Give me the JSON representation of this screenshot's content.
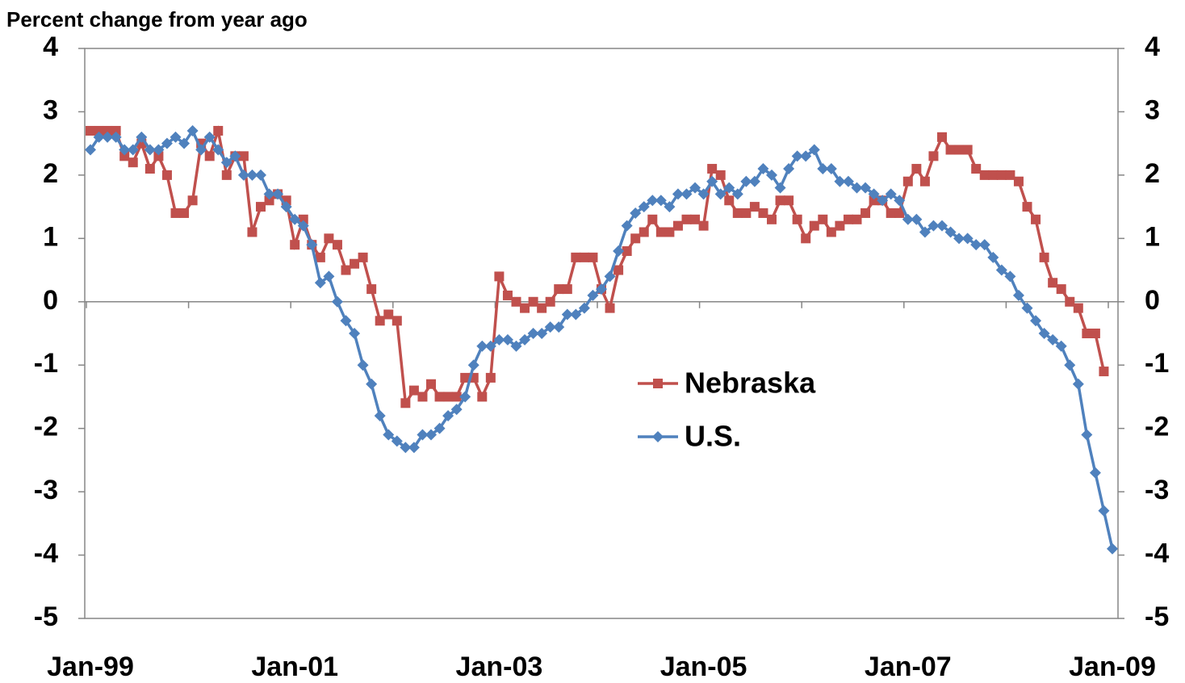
{
  "chart_data": {
    "type": "line",
    "title": "Percent change from year ago",
    "categories": [
      "Jan-99",
      null,
      null,
      null,
      null,
      null,
      null,
      null,
      null,
      null,
      null,
      null,
      null,
      null,
      null,
      null,
      null,
      null,
      null,
      null,
      null,
      null,
      null,
      null,
      "Jan-01",
      null,
      null,
      null,
      null,
      null,
      null,
      null,
      null,
      null,
      null,
      null,
      null,
      null,
      null,
      null,
      null,
      null,
      null,
      null,
      null,
      null,
      null,
      null,
      "Jan-03",
      null,
      null,
      null,
      null,
      null,
      null,
      null,
      null,
      null,
      null,
      null,
      null,
      null,
      null,
      null,
      null,
      null,
      null,
      null,
      null,
      null,
      null,
      null,
      "Jan-05",
      null,
      null,
      null,
      null,
      null,
      null,
      null,
      null,
      null,
      null,
      null,
      null,
      null,
      null,
      null,
      null,
      null,
      null,
      null,
      null,
      null,
      null,
      null,
      "Jan-07",
      null,
      null,
      null,
      null,
      null,
      null,
      null,
      null,
      null,
      null,
      null,
      null,
      null,
      null,
      null,
      null,
      null,
      null,
      null,
      null,
      null,
      null,
      null,
      "Jan-09"
    ],
    "series": [
      {
        "name": "Nebraska",
        "color": "#c0504d",
        "marker": "square",
        "values": [
          2.7,
          2.7,
          2.7,
          2.7,
          2.3,
          2.2,
          2.5,
          2.1,
          2.3,
          2.0,
          1.4,
          1.4,
          1.6,
          2.5,
          2.3,
          2.7,
          2.0,
          2.3,
          2.3,
          1.1,
          1.5,
          1.6,
          1.7,
          1.6,
          0.9,
          1.3,
          0.9,
          0.7,
          1.0,
          0.9,
          0.5,
          0.6,
          0.7,
          0.2,
          -0.3,
          -0.2,
          -0.3,
          -1.6,
          -1.4,
          -1.5,
          -1.3,
          -1.5,
          -1.5,
          -1.5,
          -1.2,
          -1.2,
          -1.5,
          -1.2,
          0.4,
          0.1,
          0.0,
          -0.1,
          0.0,
          -0.1,
          0.0,
          0.2,
          0.2,
          0.7,
          0.7,
          0.7,
          0.2,
          -0.1,
          0.5,
          0.8,
          1.0,
          1.1,
          1.3,
          1.1,
          1.1,
          1.2,
          1.3,
          1.3,
          1.2,
          2.1,
          2.0,
          1.6,
          1.4,
          1.4,
          1.5,
          1.4,
          1.3,
          1.6,
          1.6,
          1.3,
          1.0,
          1.2,
          1.3,
          1.1,
          1.2,
          1.3,
          1.3,
          1.4,
          1.6,
          1.6,
          1.4,
          1.4,
          1.9,
          2.1,
          1.9,
          2.3,
          2.6,
          2.4,
          2.4,
          2.4,
          2.1,
          2.0,
          2.0,
          2.0,
          2.0,
          1.9,
          1.5,
          1.3,
          0.7,
          0.3,
          0.2,
          0.0,
          -0.1,
          -0.5,
          -0.5,
          -1.1,
          null
        ]
      },
      {
        "name": "U.S.",
        "color": "#4f81bd",
        "marker": "diamond",
        "values": [
          2.4,
          2.6,
          2.6,
          2.6,
          2.4,
          2.4,
          2.6,
          2.4,
          2.4,
          2.5,
          2.6,
          2.5,
          2.7,
          2.4,
          2.6,
          2.4,
          2.2,
          2.3,
          2.0,
          2.0,
          2.0,
          1.7,
          1.7,
          1.5,
          1.3,
          1.2,
          0.9,
          0.3,
          0.4,
          0.0,
          -0.3,
          -0.5,
          -1.0,
          -1.3,
          -1.8,
          -2.1,
          -2.2,
          -2.3,
          -2.3,
          -2.1,
          -2.1,
          -2.0,
          -1.8,
          -1.7,
          -1.5,
          -1.0,
          -0.7,
          -0.7,
          -0.6,
          -0.6,
          -0.7,
          -0.6,
          -0.5,
          -0.5,
          -0.4,
          -0.4,
          -0.2,
          -0.2,
          -0.1,
          0.1,
          0.2,
          0.4,
          0.8,
          1.2,
          1.4,
          1.5,
          1.6,
          1.6,
          1.5,
          1.7,
          1.7,
          1.8,
          1.7,
          1.9,
          1.7,
          1.8,
          1.7,
          1.9,
          1.9,
          2.1,
          2.0,
          1.8,
          2.1,
          2.3,
          2.3,
          2.4,
          2.1,
          2.1,
          1.9,
          1.9,
          1.8,
          1.8,
          1.7,
          1.6,
          1.7,
          1.6,
          1.3,
          1.3,
          1.1,
          1.2,
          1.2,
          1.1,
          1.0,
          1.0,
          0.9,
          0.9,
          0.7,
          0.5,
          0.4,
          0.1,
          -0.1,
          -0.3,
          -0.5,
          -0.6,
          -0.7,
          -1.0,
          -1.3,
          -2.1,
          -2.7,
          -3.3,
          -3.9
        ]
      }
    ],
    "ylim": [
      -5,
      4
    ],
    "yticks": [
      -5,
      -4,
      -3,
      -2,
      -1,
      0,
      1,
      2,
      3,
      4
    ],
    "y2lim": [
      -5,
      4
    ],
    "y2ticks": [
      -5,
      -4,
      -3,
      -2,
      -1,
      0,
      1,
      2,
      3,
      4
    ],
    "grid": false,
    "legend": "center"
  }
}
